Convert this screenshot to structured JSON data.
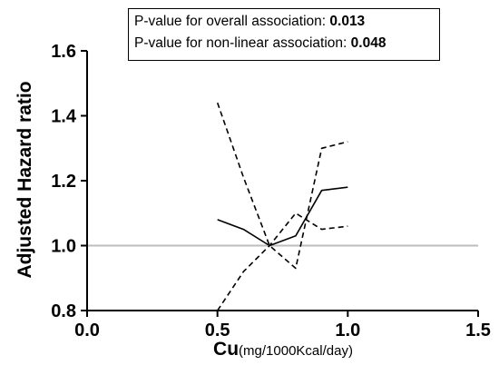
{
  "chart_data": {
    "type": "line",
    "xlabel": "Cu",
    "xlabel_unit": "(mg/1000Kcal/day)",
    "ylabel": "Adjusted Hazard ratio",
    "xlim": [
      0.0,
      1.5
    ],
    "ylim": [
      0.8,
      1.6
    ],
    "xticks": [
      "0.0",
      "0.5",
      "1.0",
      "1.5"
    ],
    "yticks": [
      "0.8",
      "1.0",
      "1.2",
      "1.4",
      "1.6"
    ],
    "reference_line": 1.0,
    "grid": false,
    "series": [
      {
        "style": "solid",
        "x": [
          0.5,
          0.6,
          0.7,
          0.8,
          0.9,
          1.0
        ],
        "values": [
          1.08,
          1.05,
          1.0,
          1.03,
          1.17,
          1.18
        ]
      },
      {
        "style": "dashed",
        "x": [
          0.5,
          0.6,
          0.7,
          0.8,
          0.9,
          1.0
        ],
        "values": [
          1.44,
          1.21,
          1.0,
          0.93,
          1.3,
          1.32
        ]
      },
      {
        "style": "dashed",
        "x": [
          0.5,
          0.6,
          0.7,
          0.8,
          0.9,
          1.0
        ],
        "values": [
          0.8,
          0.92,
          1.0,
          1.1,
          1.05,
          1.06
        ]
      }
    ],
    "annotations": [
      {
        "label": "P-value for overall association: ",
        "value": "0.013"
      },
      {
        "label": "P-value for non-linear association: ",
        "value": "0.048"
      }
    ],
    "colors": {
      "lines": "#000000",
      "reference": "#bdbdbd"
    }
  }
}
